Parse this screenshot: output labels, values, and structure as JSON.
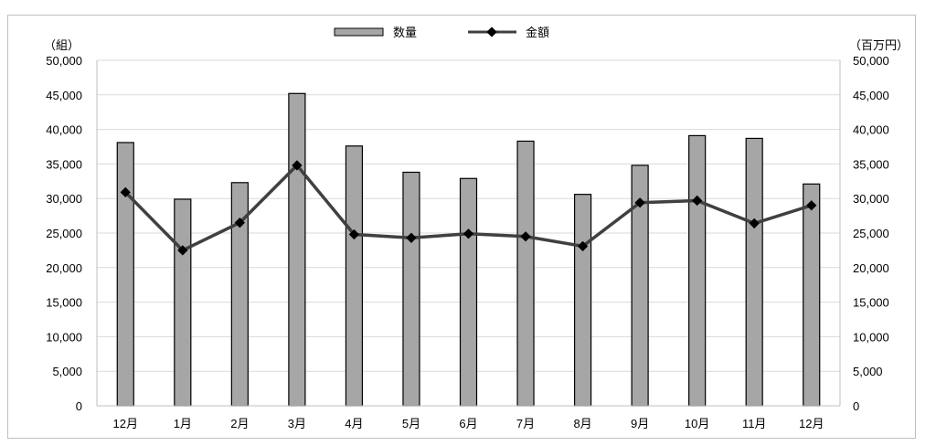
{
  "chart_data": {
    "type": "bar-line",
    "categories": [
      "12月",
      "1月",
      "2月",
      "3月",
      "4月",
      "5月",
      "6月",
      "7月",
      "8月",
      "9月",
      "10月",
      "11月",
      "12月"
    ],
    "series": [
      {
        "name": "数量",
        "type": "bar",
        "axis": "left",
        "color": "#a6a6a6",
        "values": [
          38100,
          29900,
          32300,
          45200,
          37600,
          33800,
          32900,
          38300,
          30600,
          34800,
          39100,
          38700,
          32100
        ]
      },
      {
        "name": "金額",
        "type": "line",
        "axis": "right",
        "color": "#404040",
        "values": [
          30900,
          22500,
          26500,
          34800,
          24800,
          24300,
          24900,
          24500,
          23100,
          29400,
          29700,
          26400,
          29000
        ]
      }
    ],
    "y_left": {
      "unit": "（組）",
      "ylim": [
        0,
        50000
      ],
      "ticks": [
        "0",
        "5,000",
        "10,000",
        "15,000",
        "20,000",
        "25,000",
        "30,000",
        "35,000",
        "40,000",
        "45,000",
        "50,000"
      ]
    },
    "y_right": {
      "unit": "（百万円）",
      "ylim": [
        0,
        50000
      ],
      "ticks": [
        "0",
        "5,000",
        "10,000",
        "15,000",
        "20,000",
        "25,000",
        "30,000",
        "35,000",
        "40,000",
        "45,000",
        "50,000"
      ]
    },
    "grid": true,
    "legend": "top-center"
  }
}
